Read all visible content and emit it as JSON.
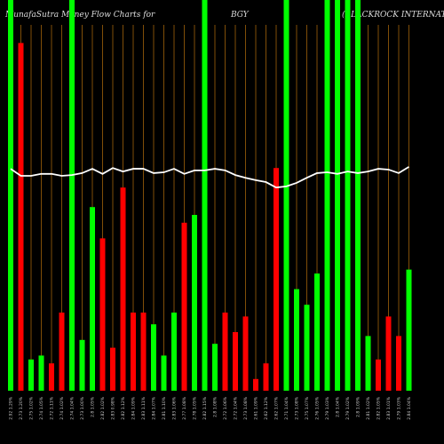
{
  "chart_data": {
    "type": "bar",
    "title": "MunafaSutra  Money Flow  Charts for",
    "symbol": "BGY",
    "company": "(BLACKROCK INTERNATIONAL",
    "categories": [
      "2.92 1.29%",
      "2.73 1.20%",
      "2.75 1.02%",
      "2.74 1.05%",
      "2.72 1.11%",
      "2.74 1.02%",
      "2.74 1.04%",
      "2.73 1.00%",
      "2.8 1.05%",
      "2.82 1.02%",
      "2.83 0.98%",
      "2.82 1.12%",
      "2.84 1.09%",
      "2.83 1.11%",
      "2.84 1.07%",
      "2.81 1.10%",
      "2.83 1.06%",
      "2.77 1.08%",
      "2.78 1.05%",
      "2.82 1.15%",
      "2.8 1.08%",
      "2.72 1.06%",
      "2.72 1.04%",
      "2.73 1.08%",
      "2.61 1.09%",
      "2.62 1.12%",
      "2.62 1.07%",
      "2.71 1.04%",
      "2.73 1.08%",
      "2.75 1.07%",
      "2.76 1.05%",
      "2.79 1.03%",
      "2.8 1.04%",
      "2.79 1.02%",
      "2.8 1.09%",
      "2.81 1.02%",
      "2.82 1.05%",
      "2.83 1.01%",
      "2.79 1.03%",
      "2.84 1.04%"
    ],
    "values": [
      100,
      89,
      8,
      9,
      7,
      20,
      100,
      13,
      47,
      39,
      11,
      52,
      20,
      20,
      17,
      9,
      20,
      43,
      45,
      100,
      12,
      20,
      15,
      19,
      3,
      7,
      57,
      100,
      26,
      22,
      30,
      100,
      100,
      100,
      100,
      14,
      8,
      19,
      14,
      31
    ],
    "bar_colors": [
      "#00ff00",
      "#ff0000",
      "#00ff00",
      "#00ff00",
      "#ff0000",
      "#ff0000",
      "#00ff00",
      "#00ff00",
      "#00ff00",
      "#ff0000",
      "#ff0000",
      "#ff0000",
      "#ff0000",
      "#ff0000",
      "#00ff00",
      "#00ff00",
      "#00ff00",
      "#ff0000",
      "#00ff00",
      "#00ff00",
      "#00ff00",
      "#ff0000",
      "#ff0000",
      "#ff0000",
      "#ff0000",
      "#ff0000",
      "#ff0000",
      "#00ff00",
      "#00ff00",
      "#00ff00",
      "#00ff00",
      "#00ff00",
      "#00ff00",
      "#00ff00",
      "#00ff00",
      "#00ff00",
      "#ff0000",
      "#ff0000",
      "#ff0000",
      "#00ff00"
    ],
    "line": {
      "color": "#ffffff",
      "values": [
        56.8,
        55.0,
        55.0,
        55.5,
        55.5,
        55.0,
        55.2,
        55.7,
        56.8,
        55.5,
        57.0,
        56.1,
        56.8,
        56.8,
        55.7,
        55.9,
        56.8,
        55.5,
        56.4,
        56.4,
        56.8,
        56.4,
        55.2,
        54.5,
        53.9,
        53.4,
        52.0,
        52.3,
        53.2,
        54.5,
        55.7,
        55.9,
        55.5,
        56.1,
        55.7,
        56.1,
        56.8,
        56.6,
        55.7,
        57.3
      ]
    },
    "ylim": [
      0,
      100
    ],
    "grid_color": "#a0620a"
  }
}
